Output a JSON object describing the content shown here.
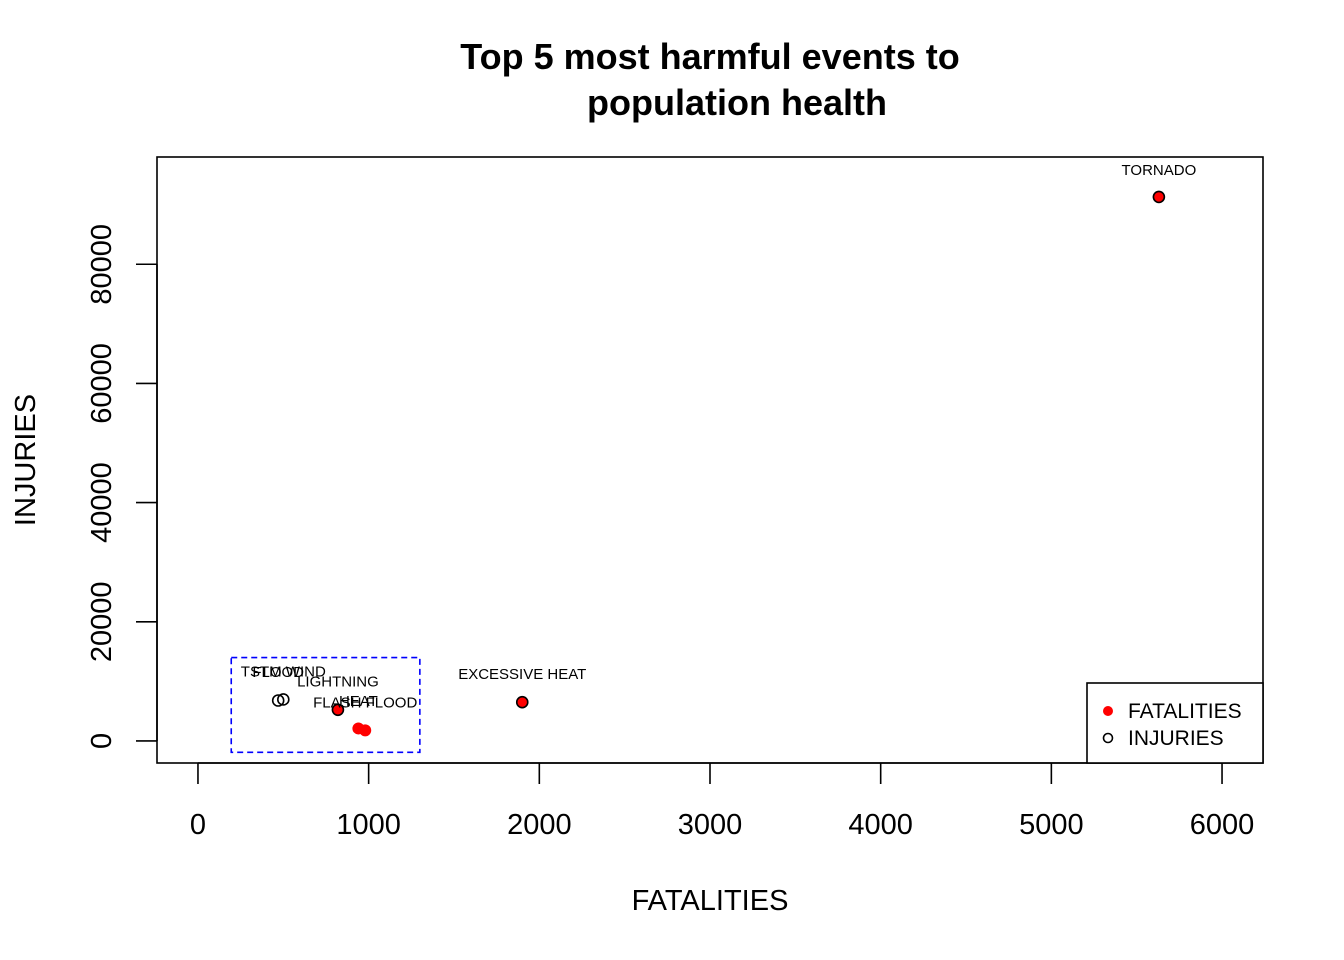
{
  "chart_data": {
    "type": "scatter",
    "title": "Top 5 most harmful events to\npopulation health",
    "xlabel": "FATALITIES",
    "ylabel": "INJURIES",
    "xlim": [
      -240,
      6240
    ],
    "ylim": [
      -3700,
      98000
    ],
    "x_ticks": [
      0,
      1000,
      2000,
      3000,
      4000,
      5000,
      6000
    ],
    "y_ticks": [
      0,
      20000,
      40000,
      60000,
      80000
    ],
    "series": [
      {
        "name": "FATALITIES",
        "marker": "filled-circle",
        "color": "#ff0000",
        "points": [
          {
            "label": "TORNADO",
            "x": 5630,
            "y": 91300
          },
          {
            "label": "EXCESSIVE HEAT",
            "x": 1900,
            "y": 6500
          },
          {
            "label": "FLASH FLOOD",
            "x": 980,
            "y": 1780
          },
          {
            "label": "HEAT",
            "x": 940,
            "y": 2100
          },
          {
            "label": "LIGHTNING",
            "x": 820,
            "y": 5230
          }
        ]
      },
      {
        "name": "INJURIES",
        "marker": "open-circle",
        "color": "#000000",
        "points": [
          {
            "label": "TORNADO",
            "x": 5630,
            "y": 91300
          },
          {
            "label": "EXCESSIVE HEAT",
            "x": 1900,
            "y": 6500
          },
          {
            "label": "TSTM WIND",
            "x": 500,
            "y": 6960
          },
          {
            "label": "FLOOD",
            "x": 470,
            "y": 6790
          },
          {
            "label": "LIGHTNING",
            "x": 820,
            "y": 5230
          }
        ]
      }
    ],
    "point_labels": [
      {
        "text": "TORNADO",
        "x": 5630,
        "y": 95000
      },
      {
        "text": "EXCESSIVE HEAT",
        "x": 1900,
        "y": 10400
      },
      {
        "text": "TSTM WIND",
        "x": 500,
        "y": 10800
      },
      {
        "text": "FLOOD",
        "x": 470,
        "y": 10700
      },
      {
        "text": "LIGHTNING",
        "x": 820,
        "y": 9100
      },
      {
        "text": "HEAT",
        "x": 940,
        "y": 5900
      },
      {
        "text": "FLASH FLOOD",
        "x": 980,
        "y": 5600
      }
    ],
    "highlight_box": {
      "x0": 195,
      "x1": 1300,
      "y0": -1900,
      "y1": 14000,
      "color": "#0000ff",
      "style": "dashed"
    },
    "legend": {
      "position": "bottom-right",
      "entries": [
        {
          "label": "FATALITIES",
          "marker": "filled-circle",
          "color": "#ff0000"
        },
        {
          "label": "INJURIES",
          "marker": "open-circle",
          "color": "#000000"
        }
      ]
    },
    "grid": false
  }
}
